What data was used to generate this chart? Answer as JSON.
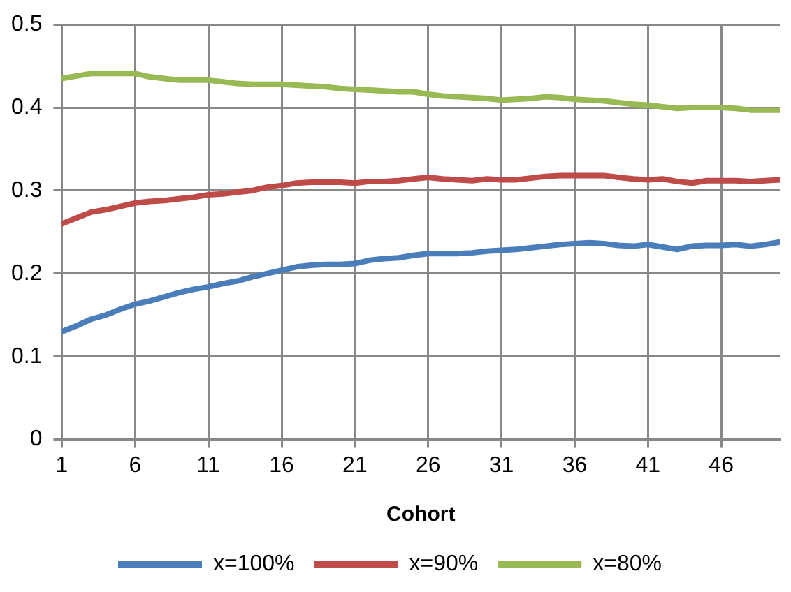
{
  "chart_data": {
    "type": "line",
    "xlabel": "Cohort",
    "x": [
      1,
      2,
      3,
      4,
      5,
      6,
      7,
      8,
      9,
      10,
      11,
      12,
      13,
      14,
      15,
      16,
      17,
      18,
      19,
      20,
      21,
      22,
      23,
      24,
      25,
      26,
      27,
      28,
      29,
      30,
      31,
      32,
      33,
      34,
      35,
      36,
      37,
      38,
      39,
      40,
      41,
      42,
      43,
      44,
      45,
      46,
      47,
      48,
      49,
      50
    ],
    "xlim": [
      1,
      50
    ],
    "xticks": [
      1,
      6,
      11,
      16,
      21,
      26,
      31,
      36,
      41,
      46
    ],
    "ylim": [
      0,
      0.5
    ],
    "yticks": [
      0,
      0.1,
      0.2,
      0.3,
      0.4,
      0.5
    ],
    "grid": true,
    "legend": "bottom",
    "marker": "none",
    "line_style": "solid",
    "series": [
      {
        "name": "x=100%",
        "color": "#4a7ebb",
        "values": [
          0.13,
          0.137,
          0.145,
          0.15,
          0.157,
          0.163,
          0.167,
          0.172,
          0.177,
          0.181,
          0.184,
          0.188,
          0.191,
          0.196,
          0.2,
          0.204,
          0.208,
          0.21,
          0.211,
          0.211,
          0.212,
          0.216,
          0.218,
          0.219,
          0.222,
          0.224,
          0.224,
          0.224,
          0.225,
          0.227,
          0.228,
          0.229,
          0.231,
          0.233,
          0.235,
          0.236,
          0.237,
          0.236,
          0.234,
          0.233,
          0.235,
          0.232,
          0.229,
          0.233,
          0.234,
          0.234,
          0.235,
          0.233,
          0.235,
          0.238
        ]
      },
      {
        "name": "x=90%",
        "color": "#be4b48",
        "values": [
          0.26,
          0.267,
          0.274,
          0.277,
          0.281,
          0.285,
          0.287,
          0.288,
          0.29,
          0.292,
          0.295,
          0.296,
          0.298,
          0.3,
          0.304,
          0.306,
          0.309,
          0.31,
          0.31,
          0.31,
          0.309,
          0.311,
          0.311,
          0.312,
          0.314,
          0.316,
          0.314,
          0.313,
          0.312,
          0.314,
          0.313,
          0.313,
          0.315,
          0.317,
          0.318,
          0.318,
          0.318,
          0.318,
          0.316,
          0.314,
          0.313,
          0.314,
          0.311,
          0.309,
          0.312,
          0.312,
          0.312,
          0.311,
          0.312,
          0.313
        ]
      },
      {
        "name": "x=80%",
        "color": "#98b954",
        "values": [
          0.435,
          0.438,
          0.441,
          0.441,
          0.441,
          0.441,
          0.437,
          0.435,
          0.433,
          0.433,
          0.433,
          0.431,
          0.429,
          0.428,
          0.428,
          0.428,
          0.427,
          0.426,
          0.425,
          0.423,
          0.422,
          0.421,
          0.42,
          0.419,
          0.419,
          0.416,
          0.414,
          0.413,
          0.412,
          0.411,
          0.409,
          0.41,
          0.411,
          0.413,
          0.412,
          0.41,
          0.409,
          0.408,
          0.406,
          0.404,
          0.403,
          0.401,
          0.399,
          0.4,
          0.4,
          0.4,
          0.399,
          0.397,
          0.397,
          0.397
        ]
      }
    ]
  }
}
